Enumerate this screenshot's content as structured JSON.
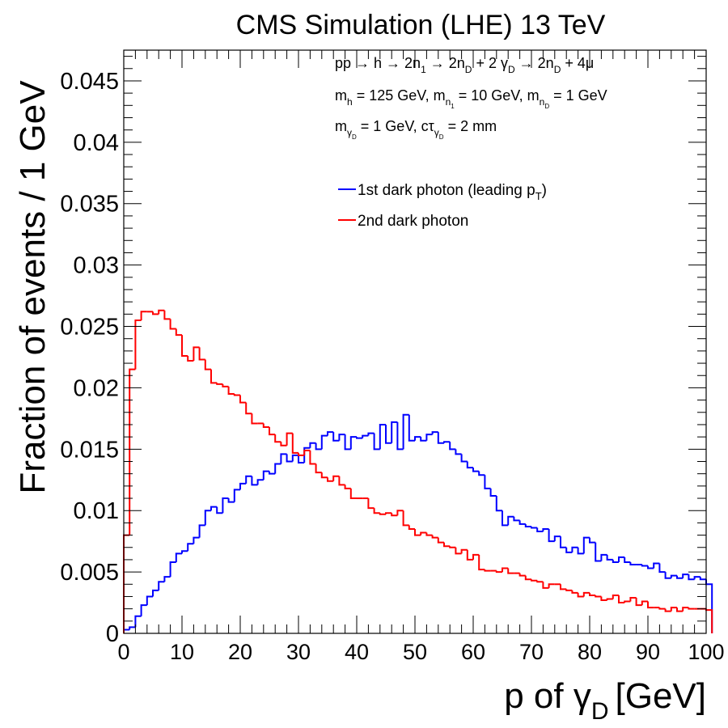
{
  "chart_data": {
    "type": "line",
    "style": "step-histogram",
    "title": "CMS Simulation (LHE) 13 TeV",
    "xlabel": {
      "main": "p of γ",
      "sub": "D",
      "unit": "[GeV]"
    },
    "ylabel": "Fraction of events / 1 GeV",
    "xlim": [
      0,
      100
    ],
    "ylim": [
      0,
      0.0475
    ],
    "bin_width": 1,
    "grid": false,
    "legend_position": "top-right",
    "xticks": [
      0,
      10,
      20,
      30,
      40,
      50,
      60,
      70,
      80,
      90,
      100
    ],
    "xtick_labels": [
      "0",
      "10",
      "20",
      "30",
      "40",
      "50",
      "60",
      "70",
      "80",
      "90",
      "100"
    ],
    "yticks": [
      0,
      0.005,
      0.01,
      0.015,
      0.02,
      0.025,
      0.03,
      0.035,
      0.04,
      0.045
    ],
    "ytick_labels": [
      "0",
      "0.005",
      "0.01",
      "0.015",
      "0.02",
      "0.025",
      "0.03",
      "0.035",
      "0.04",
      "0.045"
    ],
    "annotations": {
      "line1": {
        "a": "pp",
        "b": " → h → 2n",
        "b_sub": "1",
        "c": " → 2n",
        "c_sub": "D",
        "d": " + 2 γ",
        "d_sub": "D",
        "e": " → 2n",
        "e_sub": "D",
        "f": " + 4μ"
      },
      "line2": {
        "a": "m",
        "a_sub": "h",
        "b": " = 125 GeV, m",
        "b_sub": "n",
        "b_subsub": "1",
        "c": " = 10 GeV, m",
        "c_sub": "n",
        "c_subsub": "D",
        "d": " = 1 GeV"
      },
      "line3": {
        "a": "m",
        "a_sub": "γ",
        "a_subsub": "D",
        "b": " = 1 GeV, cτ",
        "b_sub": "γ",
        "b_subsub": "D",
        "c": " = 2 mm"
      }
    },
    "series": [
      {
        "name": "1st dark photon (leading p",
        "name_sub": "T",
        "name_tail": ")",
        "color": "#0000ff",
        "values": [
          0.0003,
          0.0005,
          0.0014,
          0.0023,
          0.003,
          0.0035,
          0.0042,
          0.0046,
          0.0058,
          0.0065,
          0.0067,
          0.0073,
          0.0078,
          0.0088,
          0.01,
          0.0103,
          0.0098,
          0.011,
          0.0107,
          0.0117,
          0.0122,
          0.0128,
          0.0121,
          0.0125,
          0.0132,
          0.013,
          0.0138,
          0.0146,
          0.014,
          0.0145,
          0.0139,
          0.0151,
          0.0155,
          0.015,
          0.0161,
          0.0164,
          0.0157,
          0.0162,
          0.015,
          0.016,
          0.0159,
          0.0161,
          0.0163,
          0.015,
          0.017,
          0.0155,
          0.0172,
          0.015,
          0.0178,
          0.0157,
          0.016,
          0.0157,
          0.0162,
          0.0164,
          0.0155,
          0.0156,
          0.015,
          0.0146,
          0.014,
          0.0135,
          0.0132,
          0.0129,
          0.0118,
          0.0112,
          0.01,
          0.0088,
          0.0095,
          0.0092,
          0.0089,
          0.0087,
          0.0086,
          0.0083,
          0.0085,
          0.0075,
          0.0079,
          0.007,
          0.0066,
          0.007,
          0.0065,
          0.0078,
          0.0074,
          0.0059,
          0.0064,
          0.006,
          0.0058,
          0.0062,
          0.0058,
          0.0056,
          0.0056,
          0.0055,
          0.0053,
          0.0057,
          0.005,
          0.0045,
          0.0047,
          0.0045,
          0.0048,
          0.0044,
          0.0046,
          0.0044,
          0.004
        ]
      },
      {
        "name": "2nd dark photon",
        "color": "#ff0000",
        "values": [
          0.008,
          0.0215,
          0.0255,
          0.0262,
          0.0262,
          0.026,
          0.0263,
          0.0256,
          0.0248,
          0.0243,
          0.0226,
          0.0222,
          0.0233,
          0.0223,
          0.0215,
          0.0204,
          0.0203,
          0.0201,
          0.0195,
          0.0194,
          0.0188,
          0.0179,
          0.0171,
          0.0171,
          0.0168,
          0.0162,
          0.0156,
          0.0153,
          0.0163,
          0.0147,
          0.0145,
          0.0149,
          0.0138,
          0.0131,
          0.0127,
          0.0124,
          0.0128,
          0.0121,
          0.0118,
          0.011,
          0.011,
          0.011,
          0.0102,
          0.0098,
          0.0097,
          0.0098,
          0.0096,
          0.01,
          0.0088,
          0.0085,
          0.008,
          0.0082,
          0.008,
          0.0078,
          0.0074,
          0.0071,
          0.007,
          0.0065,
          0.0068,
          0.006,
          0.0064,
          0.0052,
          0.0051,
          0.0051,
          0.005,
          0.0053,
          0.0049,
          0.0049,
          0.0047,
          0.0044,
          0.0043,
          0.0042,
          0.0037,
          0.004,
          0.004,
          0.0036,
          0.0035,
          0.0033,
          0.003,
          0.0033,
          0.0031,
          0.003,
          0.0027,
          0.0028,
          0.0031,
          0.0025,
          0.0026,
          0.0029,
          0.0023,
          0.0026,
          0.0021,
          0.0021,
          0.002,
          0.0018,
          0.0021,
          0.0018,
          0.0021,
          0.002,
          0.002,
          0.002,
          0.0019
        ]
      }
    ]
  }
}
